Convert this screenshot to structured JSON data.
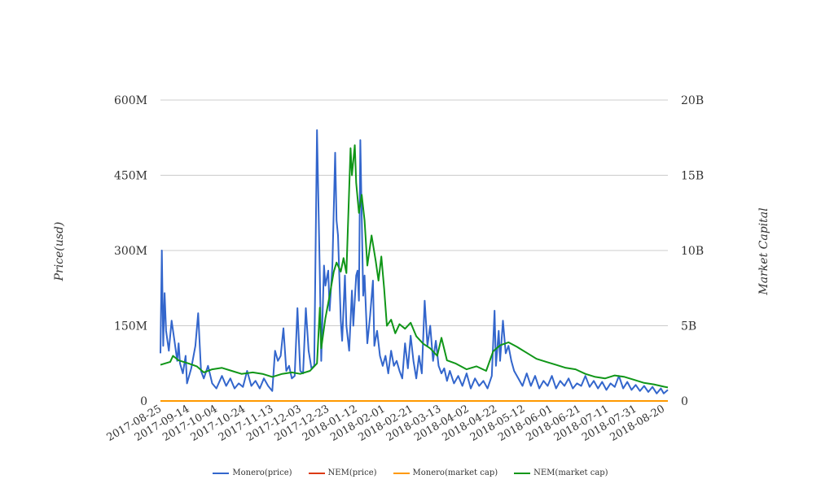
{
  "chart_data": {
    "type": "line",
    "left_axis": {
      "label": "Price(usd)",
      "ticks": [
        "0",
        "150M",
        "300M",
        "450M",
        "600M"
      ],
      "range": [
        0,
        600000000
      ]
    },
    "right_axis": {
      "label": "Market Capital",
      "ticks": [
        "0",
        "5B",
        "10B",
        "15B",
        "20B"
      ],
      "range": [
        0,
        20000000000
      ]
    },
    "x_ticks": [
      "2017-08-25",
      "2017-09-14",
      "2017-10-04",
      "2017-10-24",
      "2017-11-13",
      "2017-12-03",
      "2017-12-23",
      "2018-01-12",
      "2018-02-01",
      "2018-02-21",
      "2018-03-13",
      "2018-04-02",
      "2018-04-22",
      "2018-05-12",
      "2018-06-01",
      "2018-06-21",
      "2018-07-11",
      "2018-07-31",
      "2018-08-20"
    ],
    "x_range": [
      "2017-08-25",
      "2018-08-23"
    ],
    "grid": true,
    "legend_position": "bottom",
    "series": [
      {
        "name": "Monero(price)",
        "axis": "left",
        "color": "#3366cc",
        "points": [
          [
            "2017-08-25",
            95000000
          ],
          [
            "2017-08-26",
            300000000
          ],
          [
            "2017-08-27",
            110000000
          ],
          [
            "2017-08-28",
            215000000
          ],
          [
            "2017-08-29",
            140000000
          ],
          [
            "2017-08-31",
            100000000
          ],
          [
            "2017-09-02",
            160000000
          ],
          [
            "2017-09-04",
            120000000
          ],
          [
            "2017-09-06",
            80000000
          ],
          [
            "2017-09-07",
            115000000
          ],
          [
            "2017-09-08",
            75000000
          ],
          [
            "2017-09-10",
            55000000
          ],
          [
            "2017-09-12",
            90000000
          ],
          [
            "2017-09-13",
            35000000
          ],
          [
            "2017-09-16",
            65000000
          ],
          [
            "2017-09-19",
            110000000
          ],
          [
            "2017-09-21",
            175000000
          ],
          [
            "2017-09-23",
            60000000
          ],
          [
            "2017-09-25",
            45000000
          ],
          [
            "2017-09-28",
            70000000
          ],
          [
            "2017-10-01",
            35000000
          ],
          [
            "2017-10-04",
            25000000
          ],
          [
            "2017-10-08",
            50000000
          ],
          [
            "2017-10-11",
            30000000
          ],
          [
            "2017-10-14",
            45000000
          ],
          [
            "2017-10-17",
            25000000
          ],
          [
            "2017-10-20",
            35000000
          ],
          [
            "2017-10-23",
            28000000
          ],
          [
            "2017-10-26",
            60000000
          ],
          [
            "2017-10-29",
            30000000
          ],
          [
            "2017-11-01",
            40000000
          ],
          [
            "2017-11-04",
            25000000
          ],
          [
            "2017-11-07",
            45000000
          ],
          [
            "2017-11-10",
            30000000
          ],
          [
            "2017-11-13",
            20000000
          ],
          [
            "2017-11-15",
            100000000
          ],
          [
            "2017-11-17",
            80000000
          ],
          [
            "2017-11-19",
            90000000
          ],
          [
            "2017-11-21",
            145000000
          ],
          [
            "2017-11-23",
            60000000
          ],
          [
            "2017-11-25",
            70000000
          ],
          [
            "2017-11-27",
            45000000
          ],
          [
            "2017-11-29",
            50000000
          ],
          [
            "2017-12-01",
            185000000
          ],
          [
            "2017-12-03",
            60000000
          ],
          [
            "2017-12-05",
            55000000
          ],
          [
            "2017-12-07",
            185000000
          ],
          [
            "2017-12-09",
            100000000
          ],
          [
            "2017-12-11",
            65000000
          ],
          [
            "2017-12-13",
            70000000
          ],
          [
            "2017-12-15",
            540000000
          ],
          [
            "2017-12-17",
            250000000
          ],
          [
            "2017-12-18",
            80000000
          ],
          [
            "2017-12-20",
            270000000
          ],
          [
            "2017-12-21",
            230000000
          ],
          [
            "2017-12-23",
            260000000
          ],
          [
            "2017-12-24",
            180000000
          ],
          [
            "2017-12-26",
            270000000
          ],
          [
            "2017-12-28",
            495000000
          ],
          [
            "2017-12-29",
            360000000
          ],
          [
            "2017-12-30",
            330000000
          ],
          [
            "2018-01-01",
            160000000
          ],
          [
            "2018-01-02",
            120000000
          ],
          [
            "2018-01-04",
            250000000
          ],
          [
            "2018-01-05",
            150000000
          ],
          [
            "2018-01-07",
            100000000
          ],
          [
            "2018-01-09",
            220000000
          ],
          [
            "2018-01-10",
            150000000
          ],
          [
            "2018-01-12",
            250000000
          ],
          [
            "2018-01-13",
            260000000
          ],
          [
            "2018-01-14",
            200000000
          ],
          [
            "2018-01-15",
            520000000
          ],
          [
            "2018-01-17",
            210000000
          ],
          [
            "2018-01-18",
            250000000
          ],
          [
            "2018-01-19",
            180000000
          ],
          [
            "2018-01-20",
            115000000
          ],
          [
            "2018-01-22",
            170000000
          ],
          [
            "2018-01-24",
            240000000
          ],
          [
            "2018-01-25",
            110000000
          ],
          [
            "2018-01-27",
            140000000
          ],
          [
            "2018-01-29",
            90000000
          ],
          [
            "2018-01-31",
            70000000
          ],
          [
            "2018-02-02",
            90000000
          ],
          [
            "2018-02-04",
            55000000
          ],
          [
            "2018-02-06",
            100000000
          ],
          [
            "2018-02-08",
            70000000
          ],
          [
            "2018-02-10",
            80000000
          ],
          [
            "2018-02-12",
            60000000
          ],
          [
            "2018-02-14",
            45000000
          ],
          [
            "2018-02-16",
            115000000
          ],
          [
            "2018-02-18",
            65000000
          ],
          [
            "2018-02-20",
            130000000
          ],
          [
            "2018-02-22",
            80000000
          ],
          [
            "2018-02-24",
            45000000
          ],
          [
            "2018-02-26",
            90000000
          ],
          [
            "2018-02-28",
            55000000
          ],
          [
            "2018-03-02",
            200000000
          ],
          [
            "2018-03-04",
            110000000
          ],
          [
            "2018-03-06",
            150000000
          ],
          [
            "2018-03-08",
            80000000
          ],
          [
            "2018-03-10",
            120000000
          ],
          [
            "2018-03-12",
            70000000
          ],
          [
            "2018-03-14",
            55000000
          ],
          [
            "2018-03-16",
            65000000
          ],
          [
            "2018-03-18",
            40000000
          ],
          [
            "2018-03-20",
            60000000
          ],
          [
            "2018-03-23",
            35000000
          ],
          [
            "2018-03-26",
            50000000
          ],
          [
            "2018-03-29",
            30000000
          ],
          [
            "2018-04-01",
            55000000
          ],
          [
            "2018-04-04",
            25000000
          ],
          [
            "2018-04-07",
            45000000
          ],
          [
            "2018-04-10",
            30000000
          ],
          [
            "2018-04-13",
            40000000
          ],
          [
            "2018-04-16",
            25000000
          ],
          [
            "2018-04-19",
            50000000
          ],
          [
            "2018-04-21",
            180000000
          ],
          [
            "2018-04-22",
            70000000
          ],
          [
            "2018-04-24",
            140000000
          ],
          [
            "2018-04-25",
            80000000
          ],
          [
            "2018-04-27",
            160000000
          ],
          [
            "2018-04-29",
            95000000
          ],
          [
            "2018-05-01",
            110000000
          ],
          [
            "2018-05-03",
            80000000
          ],
          [
            "2018-05-05",
            60000000
          ],
          [
            "2018-05-08",
            45000000
          ],
          [
            "2018-05-11",
            30000000
          ],
          [
            "2018-05-14",
            55000000
          ],
          [
            "2018-05-17",
            30000000
          ],
          [
            "2018-05-20",
            50000000
          ],
          [
            "2018-05-23",
            25000000
          ],
          [
            "2018-05-26",
            40000000
          ],
          [
            "2018-05-29",
            30000000
          ],
          [
            "2018-06-01",
            50000000
          ],
          [
            "2018-06-04",
            25000000
          ],
          [
            "2018-06-07",
            40000000
          ],
          [
            "2018-06-10",
            30000000
          ],
          [
            "2018-06-13",
            45000000
          ],
          [
            "2018-06-16",
            25000000
          ],
          [
            "2018-06-19",
            35000000
          ],
          [
            "2018-06-22",
            30000000
          ],
          [
            "2018-06-25",
            50000000
          ],
          [
            "2018-06-28",
            28000000
          ],
          [
            "2018-07-01",
            40000000
          ],
          [
            "2018-07-04",
            25000000
          ],
          [
            "2018-07-07",
            38000000
          ],
          [
            "2018-07-10",
            22000000
          ],
          [
            "2018-07-13",
            35000000
          ],
          [
            "2018-07-16",
            28000000
          ],
          [
            "2018-07-19",
            50000000
          ],
          [
            "2018-07-22",
            25000000
          ],
          [
            "2018-07-25",
            38000000
          ],
          [
            "2018-07-28",
            22000000
          ],
          [
            "2018-07-31",
            32000000
          ],
          [
            "2018-08-03",
            20000000
          ],
          [
            "2018-08-06",
            30000000
          ],
          [
            "2018-08-09",
            18000000
          ],
          [
            "2018-08-12",
            28000000
          ],
          [
            "2018-08-15",
            15000000
          ],
          [
            "2018-08-18",
            25000000
          ],
          [
            "2018-08-20",
            15000000
          ],
          [
            "2018-08-23",
            22000000
          ]
        ]
      },
      {
        "name": "NEM(price)",
        "axis": "left",
        "color": "#dc3912",
        "points": [
          [
            "2017-08-25",
            0
          ],
          [
            "2018-08-23",
            0
          ]
        ]
      },
      {
        "name": "Monero(market cap)",
        "axis": "right",
        "color": "#ff9900",
        "points": [
          [
            "2017-08-25",
            0
          ],
          [
            "2018-08-23",
            0
          ]
        ]
      },
      {
        "name": "NEM(market cap)",
        "axis": "right",
        "color": "#109618",
        "points": [
          [
            "2017-08-25",
            2400000000
          ],
          [
            "2017-09-01",
            2600000000
          ],
          [
            "2017-09-03",
            3000000000
          ],
          [
            "2017-09-07",
            2700000000
          ],
          [
            "2017-09-14",
            2500000000
          ],
          [
            "2017-09-20",
            2300000000
          ],
          [
            "2017-09-25",
            1900000000
          ],
          [
            "2017-10-01",
            2100000000
          ],
          [
            "2017-10-08",
            2200000000
          ],
          [
            "2017-10-15",
            2000000000
          ],
          [
            "2017-10-22",
            1800000000
          ],
          [
            "2017-10-30",
            1900000000
          ],
          [
            "2017-11-06",
            1800000000
          ],
          [
            "2017-11-13",
            1600000000
          ],
          [
            "2017-11-20",
            1800000000
          ],
          [
            "2017-11-27",
            1900000000
          ],
          [
            "2017-12-03",
            1800000000
          ],
          [
            "2017-12-10",
            2000000000
          ],
          [
            "2017-12-15",
            2500000000
          ],
          [
            "2017-12-17",
            6200000000
          ],
          [
            "2017-12-18",
            3500000000
          ],
          [
            "2017-12-21",
            5500000000
          ],
          [
            "2017-12-24",
            7000000000
          ],
          [
            "2017-12-27",
            8600000000
          ],
          [
            "2017-12-29",
            9200000000
          ],
          [
            "2018-01-01",
            8600000000
          ],
          [
            "2018-01-03",
            9500000000
          ],
          [
            "2018-01-05",
            8500000000
          ],
          [
            "2018-01-06",
            11300000000
          ],
          [
            "2018-01-08",
            16800000000
          ],
          [
            "2018-01-09",
            15000000000
          ],
          [
            "2018-01-11",
            17000000000
          ],
          [
            "2018-01-12",
            14500000000
          ],
          [
            "2018-01-14",
            12500000000
          ],
          [
            "2018-01-16",
            13700000000
          ],
          [
            "2018-01-18",
            12000000000
          ],
          [
            "2018-01-20",
            9000000000
          ],
          [
            "2018-01-23",
            11000000000
          ],
          [
            "2018-01-26",
            9300000000
          ],
          [
            "2018-01-28",
            8000000000
          ],
          [
            "2018-01-30",
            9600000000
          ],
          [
            "2018-02-01",
            7500000000
          ],
          [
            "2018-02-03",
            5000000000
          ],
          [
            "2018-02-06",
            5400000000
          ],
          [
            "2018-02-09",
            4500000000
          ],
          [
            "2018-02-12",
            5100000000
          ],
          [
            "2018-02-16",
            4800000000
          ],
          [
            "2018-02-20",
            5200000000
          ],
          [
            "2018-02-24",
            4300000000
          ],
          [
            "2018-03-01",
            3800000000
          ],
          [
            "2018-03-06",
            3500000000
          ],
          [
            "2018-03-11",
            3000000000
          ],
          [
            "2018-03-14",
            4200000000
          ],
          [
            "2018-03-18",
            2700000000
          ],
          [
            "2018-03-24",
            2500000000
          ],
          [
            "2018-04-01",
            2100000000
          ],
          [
            "2018-04-08",
            2300000000
          ],
          [
            "2018-04-15",
            2000000000
          ],
          [
            "2018-04-20",
            3300000000
          ],
          [
            "2018-04-25",
            3700000000
          ],
          [
            "2018-05-01",
            3900000000
          ],
          [
            "2018-05-07",
            3600000000
          ],
          [
            "2018-05-14",
            3200000000
          ],
          [
            "2018-05-21",
            2800000000
          ],
          [
            "2018-05-28",
            2600000000
          ],
          [
            "2018-06-04",
            2400000000
          ],
          [
            "2018-06-11",
            2200000000
          ],
          [
            "2018-06-18",
            2100000000
          ],
          [
            "2018-06-25",
            1800000000
          ],
          [
            "2018-07-02",
            1600000000
          ],
          [
            "2018-07-09",
            1500000000
          ],
          [
            "2018-07-16",
            1700000000
          ],
          [
            "2018-07-23",
            1600000000
          ],
          [
            "2018-07-30",
            1400000000
          ],
          [
            "2018-08-06",
            1200000000
          ],
          [
            "2018-08-13",
            1100000000
          ],
          [
            "2018-08-20",
            950000000
          ],
          [
            "2018-08-23",
            900000000
          ]
        ]
      }
    ]
  }
}
